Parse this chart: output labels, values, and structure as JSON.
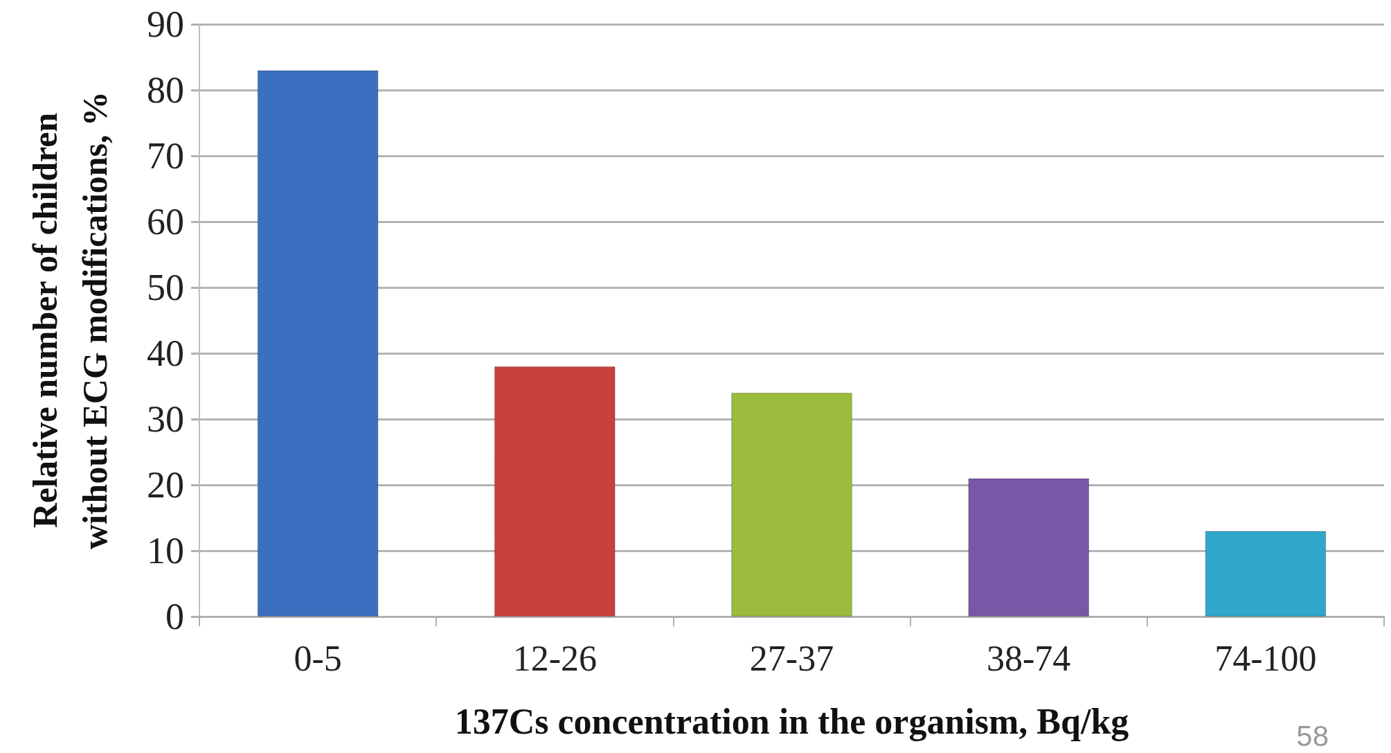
{
  "chart_data": {
    "type": "bar",
    "xlabel": "137Cs concentration in the organism, Bq/kg",
    "ylabel": "Relative number of children without ECG modifications, %",
    "categories": [
      "0-5",
      "12-26",
      "27-37",
      "38-74",
      "74-100"
    ],
    "values": [
      83,
      38,
      34,
      21,
      13
    ],
    "colors": [
      "#3b6fc0",
      "#c8403c",
      "#9bbb3c",
      "#7a57a6",
      "#2ea7c9"
    ],
    "ylim": [
      0,
      90
    ],
    "yticks": [
      0,
      10,
      20,
      30,
      40,
      50,
      60,
      70,
      80,
      90
    ],
    "grid": "y",
    "annotations": [
      "58"
    ]
  }
}
